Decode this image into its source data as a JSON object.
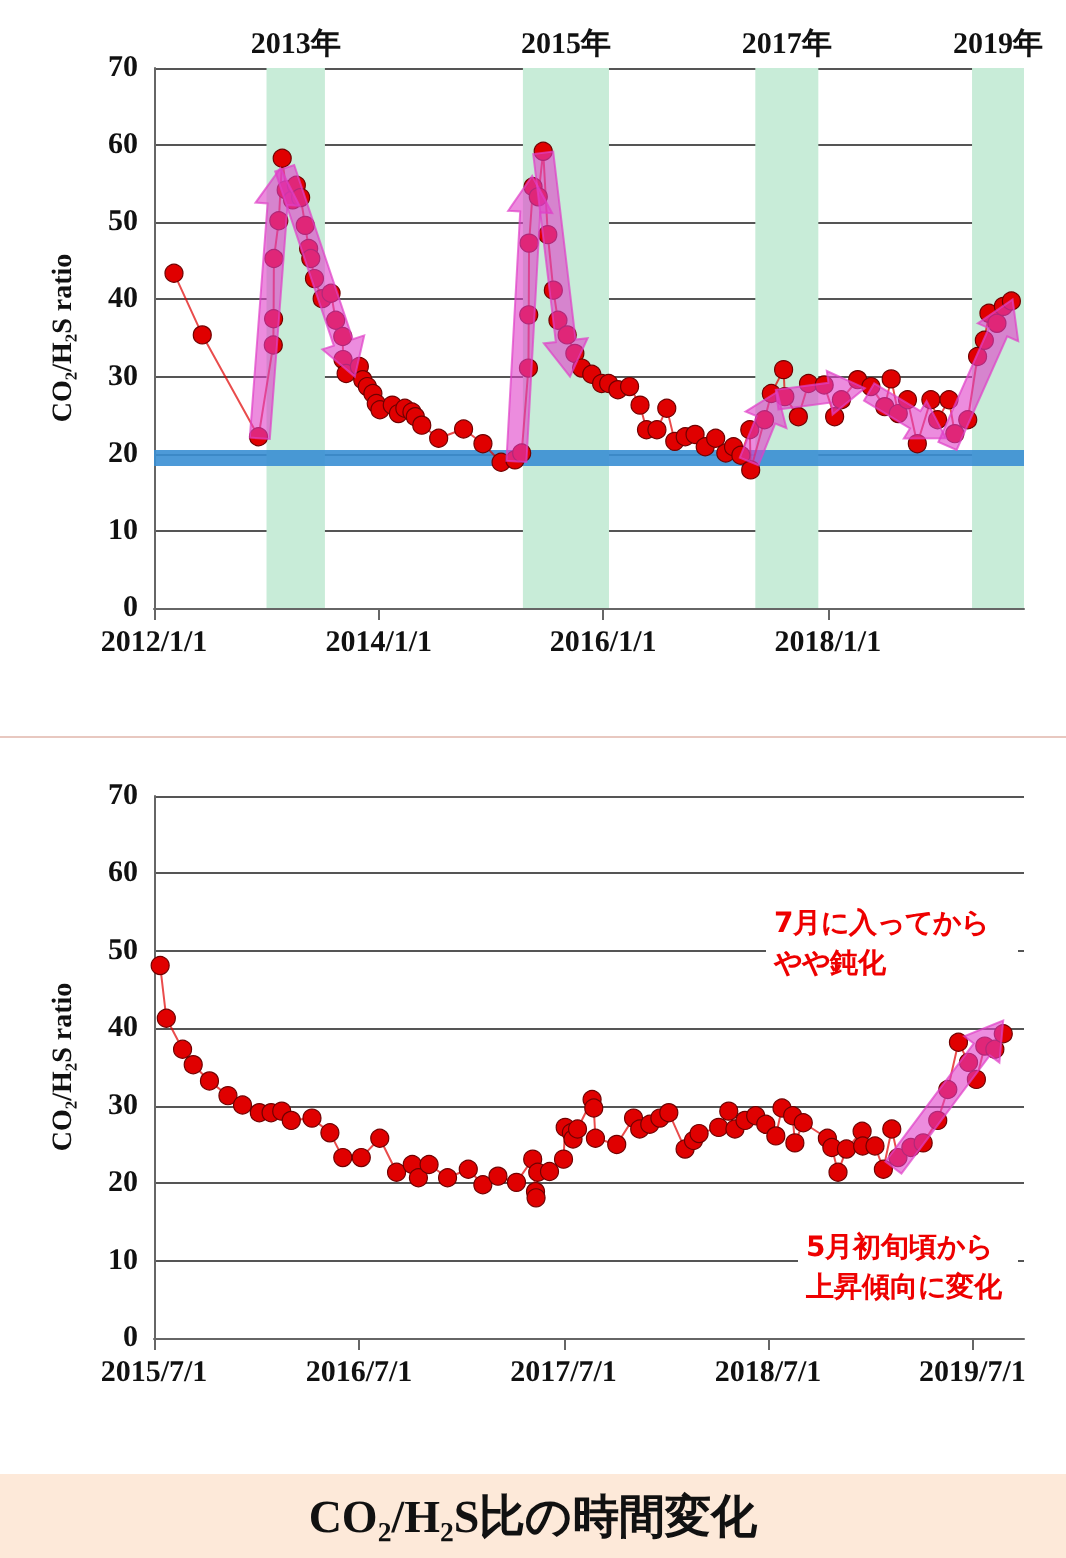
{
  "chart_data": [
    {
      "type": "line",
      "ylabel": "CO₂/H₂S ratio",
      "x": [
        "2012-03-06",
        "2012-06-06",
        "2012-12-06",
        "2013-01-23",
        "2013-01-24",
        "2013-01-25",
        "2013-02-10",
        "2013-02-21",
        "2013-03-06",
        "2013-03-27",
        "2013-04-08",
        "2013-04-22",
        "2013-05-07",
        "2013-05-18",
        "2013-05-25",
        "2013-06-06",
        "2013-07-01",
        "2013-07-30",
        "2013-08-14",
        "2013-09-06",
        "2013-09-07",
        "2013-09-17",
        "2013-10-30",
        "2013-11-10",
        "2013-11-25",
        "2013-12-13",
        "2013-12-24",
        "2014-01-05",
        "2014-02-14",
        "2014-03-06",
        "2014-03-27",
        "2014-04-19",
        "2014-04-30",
        "2014-05-21",
        "2014-07-15",
        "2014-10-04",
        "2014-12-06",
        "2015-02-03",
        "2015-03-20",
        "2015-04-11",
        "2015-05-03",
        "2015-05-04",
        "2015-05-05",
        "2015-05-18",
        "2015-06-04",
        "2015-06-20",
        "2015-07-05",
        "2015-07-23",
        "2015-08-07",
        "2015-09-06",
        "2015-10-01",
        "2015-10-23",
        "2015-11-25",
        "2015-12-27",
        "2016-01-19",
        "2016-02-18",
        "2016-03-27",
        "2016-04-30",
        "2016-05-21",
        "2016-06-24",
        "2016-07-26",
        "2016-08-21",
        "2016-09-24",
        "2016-10-26",
        "2016-11-28",
        "2017-01-01",
        "2017-02-03",
        "2017-02-28",
        "2017-03-24",
        "2017-04-22",
        "2017-04-25",
        "2017-06-09",
        "2017-07-01",
        "2017-08-10",
        "2017-08-14",
        "2017-09-27",
        "2017-10-30",
        "2017-12-20",
        "2018-01-23",
        "2018-02-14",
        "2018-04-08",
        "2018-05-21",
        "2018-07-05",
        "2018-07-26",
        "2018-08-18",
        "2018-09-17",
        "2018-10-19",
        "2018-12-02",
        "2018-12-24",
        "2019-01-30",
        "2019-02-18",
        "2019-04-01",
        "2019-05-03",
        "2019-05-25",
        "2019-06-09",
        "2019-07-05",
        "2019-07-26",
        "2019-08-21"
      ],
      "series": [
        {
          "color": "#e00000",
          "values": [
            43.4,
            35.4,
            22.2,
            34.1,
            37.5,
            45.3,
            50.2,
            58.3,
            54.2,
            52.9,
            54.8,
            53.2,
            49.6,
            46.6,
            45.3,
            42.7,
            40.1,
            40.8,
            37.3,
            35.2,
            32.2,
            30.4,
            31.3,
            29.6,
            28.7,
            27.8,
            26.5,
            25.7,
            26.3,
            25.2,
            25.9,
            25.4,
            24.8,
            23.7,
            22.0,
            23.2,
            21.3,
            18.9,
            19.2,
            20.1,
            31.1,
            38.0,
            47.3,
            54.6,
            53.3,
            59.2,
            48.4,
            41.2,
            37.3,
            35.4,
            33.0,
            31.1,
            30.3,
            29.1,
            29.1,
            28.3,
            28.7,
            26.3,
            23.1,
            23.1,
            25.9,
            21.6,
            22.2,
            22.5,
            20.9,
            22.0,
            20.1,
            20.9,
            19.8,
            23.1,
            17.9,
            24.4,
            27.8,
            30.9,
            27.4,
            24.8,
            29.1,
            28.9,
            24.8,
            27.0,
            29.6,
            28.7,
            26.1,
            29.7,
            25.2,
            27.0,
            21.3,
            27.0,
            24.4,
            27.0,
            22.6,
            24.4,
            32.6,
            34.7,
            38.2,
            36.9,
            39.1,
            39.8
          ]
        }
      ],
      "xlim": [
        "2012-01-01",
        "2019-10-01"
      ],
      "xticks": [
        {
          "value": "2012-01-01",
          "label": "2012/1/1"
        },
        {
          "value": "2014-01-01",
          "label": "2014/1/1"
        },
        {
          "value": "2016-01-01",
          "label": "2016/1/1"
        },
        {
          "value": "2018-01-01",
          "label": "2018/1/1"
        }
      ],
      "ylim": [
        0,
        70
      ],
      "yticks": [
        0,
        10,
        20,
        30,
        40,
        50,
        60,
        70
      ],
      "grid": "y",
      "marker": "circle",
      "line_style": "solid",
      "bands": [
        {
          "axis": "x",
          "from": "2013-01-01",
          "to": "2013-07-10",
          "label": "2013年",
          "color": "#c8ecd8"
        },
        {
          "axis": "x",
          "from": "2015-04-15",
          "to": "2016-01-20",
          "label": "2015年",
          "color": "#c8ecd8"
        },
        {
          "axis": "x",
          "from": "2017-05-10",
          "to": "2017-12-01",
          "label": "2017年",
          "color": "#c8ecd8"
        },
        {
          "axis": "x",
          "from": "2019-04-15",
          "to": "2019-10-01",
          "label": "2019年",
          "color": "#c8ecd8"
        }
      ],
      "ref_lines": [
        {
          "axis": "y",
          "value": 19.5,
          "color": "#3a8fd4"
        }
      ]
    },
    {
      "type": "line",
      "ylabel": "CO₂/H₂S ratio",
      "title": "CO₂/H₂S比の時間変化",
      "annotations": [
        "7月に入ってからやや鈍化",
        "5月初旬頃から上昇傾向に変化"
      ],
      "x": [
        "2015-07-12",
        "2015-07-23",
        "2015-08-21",
        "2015-09-09",
        "2015-10-08",
        "2015-11-10",
        "2015-12-06",
        "2016-01-05",
        "2016-01-26",
        "2016-02-14",
        "2016-03-02",
        "2016-04-08",
        "2016-05-10",
        "2016-06-02",
        "2016-07-05",
        "2016-08-07",
        "2016-09-06",
        "2016-10-04",
        "2016-10-15",
        "2016-11-03",
        "2016-12-06",
        "2017-01-12",
        "2017-02-07",
        "2017-03-06",
        "2017-04-08",
        "2017-05-07",
        "2017-05-12",
        "2017-05-13",
        "2017-05-16",
        "2017-06-06",
        "2017-07-01",
        "2017-07-04",
        "2017-07-15",
        "2017-07-18",
        "2017-07-26",
        "2017-08-21",
        "2017-08-24",
        "2017-08-27",
        "2017-10-04",
        "2017-11-03",
        "2017-11-14",
        "2017-12-02",
        "2017-12-20",
        "2018-01-05",
        "2018-02-03",
        "2018-02-18",
        "2018-02-28",
        "2018-04-04",
        "2018-04-22",
        "2018-05-03",
        "2018-05-21",
        "2018-06-09",
        "2018-06-27",
        "2018-07-15",
        "2018-07-26",
        "2018-08-14",
        "2018-08-18",
        "2018-09-02",
        "2018-10-15",
        "2018-10-23",
        "2018-11-03",
        "2018-11-18",
        "2018-12-16",
        "2018-12-17",
        "2019-01-08",
        "2019-01-23",
        "2019-02-07",
        "2019-02-18",
        "2019-03-13",
        "2019-04-04",
        "2019-04-30",
        "2019-05-18",
        "2019-06-06",
        "2019-06-24",
        "2019-07-08",
        "2019-07-23",
        "2019-08-10",
        "2019-08-25"
      ],
      "series": [
        {
          "color": "#e00000",
          "values": [
            48.1,
            41.3,
            37.3,
            35.3,
            33.2,
            31.3,
            30.1,
            29.1,
            29.1,
            29.3,
            28.1,
            28.4,
            26.5,
            23.3,
            23.3,
            25.8,
            21.4,
            22.4,
            20.7,
            22.4,
            20.7,
            21.8,
            19.8,
            20.9,
            20.1,
            23.1,
            18.9,
            18.1,
            21.4,
            21.5,
            23.1,
            27.2,
            26.5,
            25.7,
            27.0,
            30.8,
            29.7,
            25.8,
            25.0,
            28.4,
            27.0,
            27.6,
            28.4,
            29.1,
            24.4,
            25.5,
            26.4,
            27.2,
            29.3,
            27.0,
            28.1,
            28.7,
            27.6,
            26.1,
            29.7,
            28.7,
            25.2,
            27.8,
            25.8,
            24.6,
            21.4,
            24.4,
            26.7,
            24.8,
            24.8,
            21.8,
            27.0,
            23.3,
            24.6,
            25.2,
            28.1,
            32.1,
            38.2,
            35.6,
            33.4,
            37.7,
            37.3,
            39.3
          ]
        }
      ],
      "xlim": [
        "2015-07-01",
        "2019-10-01"
      ],
      "xticks": [
        {
          "value": "2015-07-01",
          "label": "2015/7/1"
        },
        {
          "value": "2016-07-01",
          "label": "2016/7/1"
        },
        {
          "value": "2017-07-01",
          "label": "2017/7/1"
        },
        {
          "value": "2018-07-01",
          "label": "2018/7/1"
        },
        {
          "value": "2019-07-01",
          "label": "2019/7/1"
        }
      ],
      "ylim": [
        0,
        70
      ],
      "yticks": [
        0,
        10,
        20,
        30,
        40,
        50,
        60,
        70
      ],
      "grid": "y",
      "marker": "circle",
      "line_style": "solid"
    }
  ]
}
